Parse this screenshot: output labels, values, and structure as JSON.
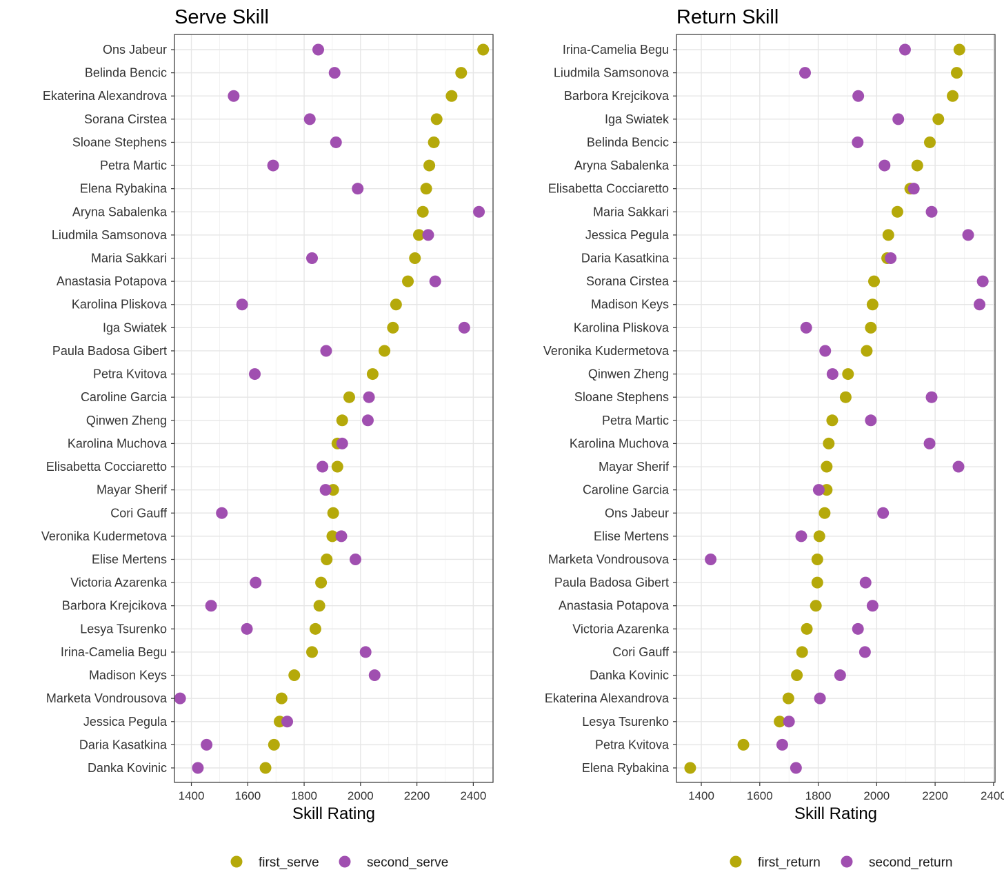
{
  "chart_data": [
    {
      "type": "scatter",
      "title": "Serve Skill",
      "xlabel": "Skill Rating",
      "ylabel": "",
      "xlim": [
        1340,
        2470
      ],
      "xticks": [
        1400,
        1600,
        1800,
        2000,
        2200,
        2400
      ],
      "grid": true,
      "legend_position": "bottom",
      "categories": [
        "Ons Jabeur",
        "Belinda Bencic",
        "Ekaterina Alexandrova",
        "Sorana Cirstea",
        "Sloane Stephens",
        "Petra Martic",
        "Elena Rybakina",
        "Aryna Sabalenka",
        "Liudmila Samsonova",
        "Maria Sakkari",
        "Anastasia Potapova",
        "Karolina Pliskova",
        "Iga Swiatek",
        "Paula Badosa Gibert",
        "Petra Kvitova",
        "Caroline Garcia",
        "Qinwen Zheng",
        "Karolina Muchova",
        "Elisabetta Cocciaretto",
        "Mayar Sherif",
        "Cori Gauff",
        "Veronika Kudermetova",
        "Elise Mertens",
        "Victoria Azarenka",
        "Barbora Krejcikova",
        "Lesya Tsurenko",
        "Irina-Camelia Begu",
        "Madison Keys",
        "Marketa Vondrousova",
        "Jessica Pegula",
        "Daria Kasatkina",
        "Danka Kovinic"
      ],
      "series": [
        {
          "name": "first_serve",
          "color": "#b5a90a",
          "values": [
            2435,
            2357,
            2323,
            2270,
            2260,
            2244,
            2233,
            2221,
            2207,
            2193,
            2168,
            2126,
            2115,
            2085,
            2043,
            1960,
            1935,
            1918,
            1918,
            1903,
            1903,
            1900,
            1880,
            1860,
            1854,
            1840,
            1828,
            1765,
            1720,
            1713,
            1693,
            1663
          ]
        },
        {
          "name": "second_serve",
          "color": "#a04fb0",
          "values": [
            1850,
            1908,
            1550,
            1820,
            1913,
            1690,
            1990,
            2420,
            2240,
            1828,
            2265,
            1580,
            2368,
            1878,
            1625,
            2030,
            2026,
            1935,
            1865,
            1876,
            1508,
            1932,
            1982,
            1628,
            1470,
            1597,
            2018,
            2050,
            1360,
            1740,
            1454,
            1423
          ]
        }
      ]
    },
    {
      "type": "scatter",
      "title": "Return Skill",
      "xlabel": "Skill Rating",
      "ylabel": "",
      "xlim": [
        1315,
        2405
      ],
      "xticks": [
        1400,
        1600,
        1800,
        2000,
        2200,
        2400
      ],
      "grid": true,
      "legend_position": "bottom",
      "categories": [
        "Irina-Camelia Begu",
        "Liudmila Samsonova",
        "Barbora Krejcikova",
        "Iga Swiatek",
        "Belinda Bencic",
        "Aryna Sabalenka",
        "Elisabetta Cocciaretto",
        "Maria Sakkari",
        "Jessica Pegula",
        "Daria Kasatkina",
        "Sorana Cirstea",
        "Madison Keys",
        "Karolina Pliskova",
        "Veronika Kudermetova",
        "Qinwen Zheng",
        "Sloane Stephens",
        "Petra Martic",
        "Karolina Muchova",
        "Mayar Sherif",
        "Caroline Garcia",
        "Ons Jabeur",
        "Elise Mertens",
        "Marketa Vondrousova",
        "Paula Badosa Gibert",
        "Anastasia Potapova",
        "Victoria Azarenka",
        "Cori Gauff",
        "Danka Kovinic",
        "Ekaterina Alexandrova",
        "Lesya Tsurenko",
        "Petra Kvitova",
        "Elena Rybakina"
      ],
      "series": [
        {
          "name": "first_return",
          "color": "#b5a90a",
          "values": [
            2283,
            2274,
            2260,
            2211,
            2182,
            2139,
            2115,
            2071,
            2040,
            2036,
            1991,
            1986,
            1980,
            1966,
            1902,
            1894,
            1848,
            1836,
            1829,
            1829,
            1822,
            1804,
            1797,
            1797,
            1792,
            1761,
            1745,
            1727,
            1698,
            1668,
            1544,
            1362
          ]
        },
        {
          "name": "second_return",
          "color": "#a04fb0",
          "values": [
            2097,
            1755,
            1937,
            2074,
            1935,
            2027,
            2127,
            2188,
            2313,
            2048,
            2363,
            2352,
            1759,
            1824,
            1849,
            2188,
            1980,
            2181,
            2280,
            1802,
            2022,
            1742,
            1432,
            1962,
            1986,
            1936,
            1960,
            1875,
            1806,
            1700,
            1677,
            1724
          ]
        }
      ]
    }
  ]
}
